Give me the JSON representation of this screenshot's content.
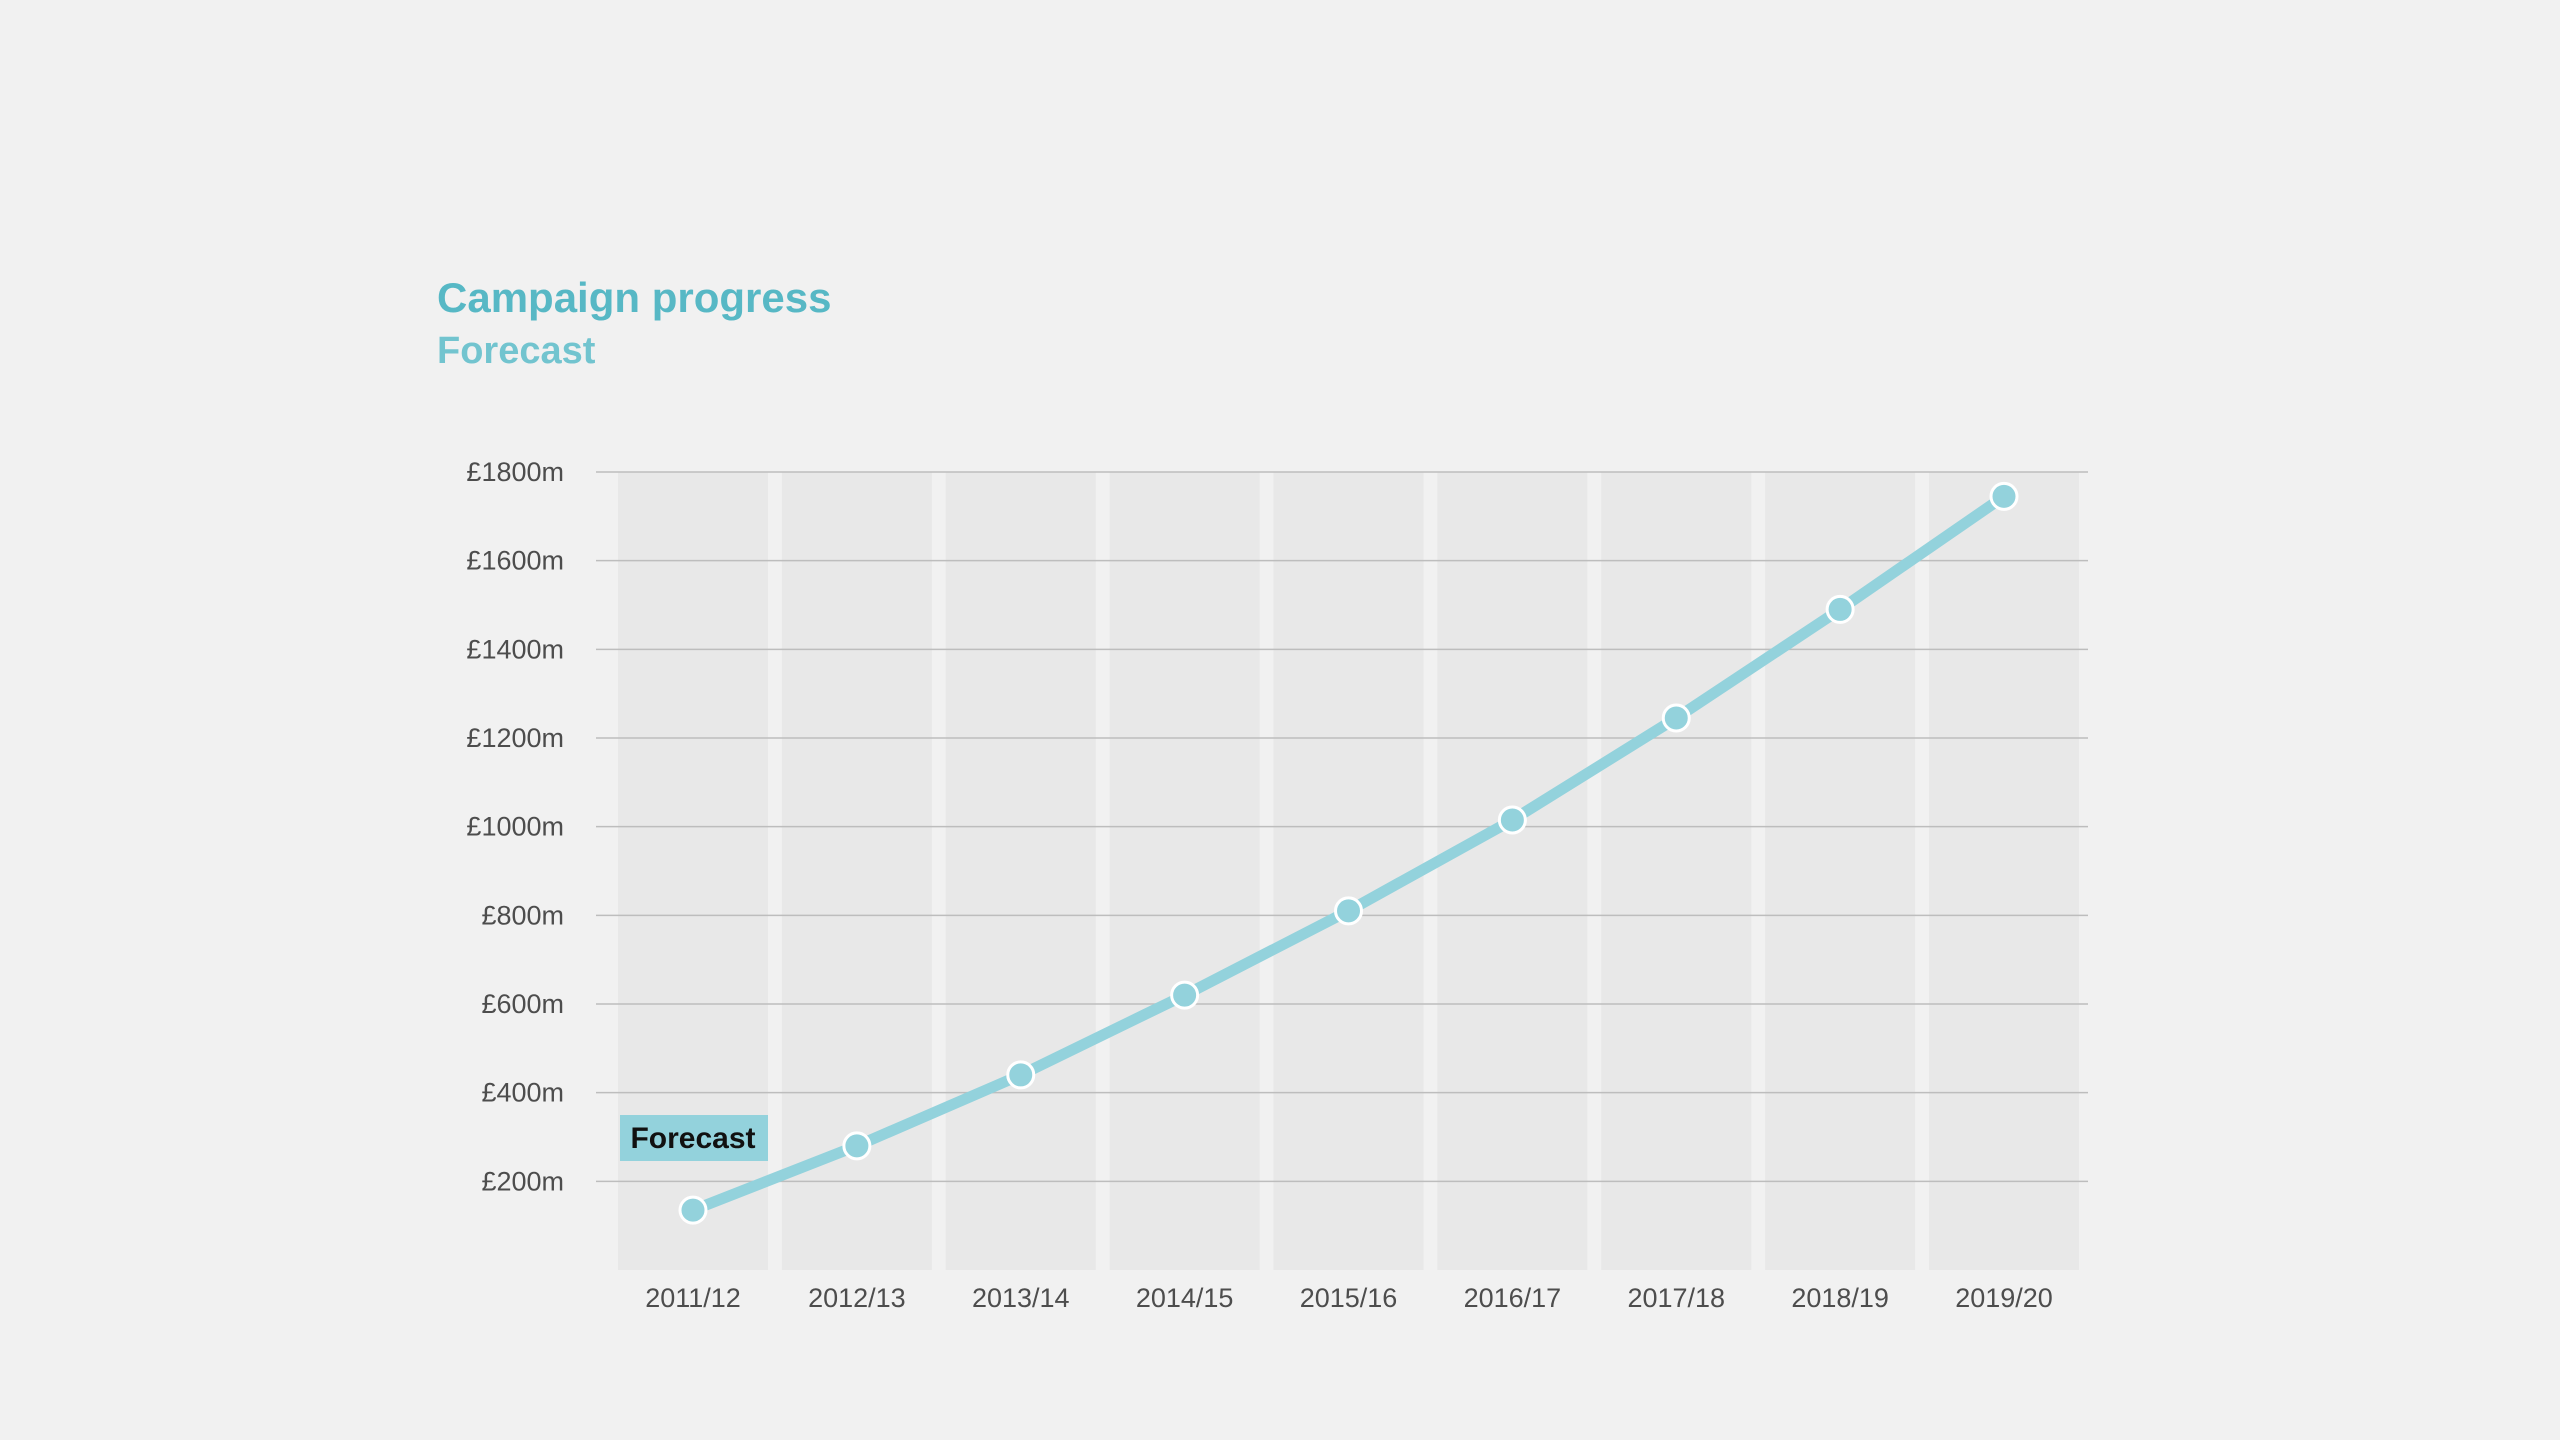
{
  "chart_data": {
    "type": "line",
    "title": "Campaign progress",
    "subtitle": "Forecast",
    "xlabel": "",
    "ylabel": "",
    "categories": [
      "2011/12",
      "2012/13",
      "2013/14",
      "2014/15",
      "2015/16",
      "2016/17",
      "2017/18",
      "2018/19",
      "2019/20"
    ],
    "series": [
      {
        "values": [
          135,
          280,
          440,
          620,
          810,
          1015,
          1245,
          1490,
          1745
        ]
      }
    ],
    "yticks": [
      200,
      400,
      600,
      800,
      1000,
      1200,
      1400,
      1600,
      1800
    ],
    "ytick_labels": [
      "£200m",
      "£400m",
      "£600m",
      "£800m",
      "£1000m",
      "£1200m",
      "£1400m",
      "£1600m",
      "£1800m"
    ],
    "ylim": [
      0,
      1800
    ],
    "grid": true,
    "annotation": {
      "label": "Forecast",
      "category_index": 0
    },
    "colors": {
      "title": "#57b8c5",
      "subtitle": "#72c4cf",
      "line": "#93d2dc",
      "marker": "#93d2dc",
      "band": "#e8e8e8",
      "grid": "#bdbdbd",
      "background": "#f1f1f1"
    }
  }
}
